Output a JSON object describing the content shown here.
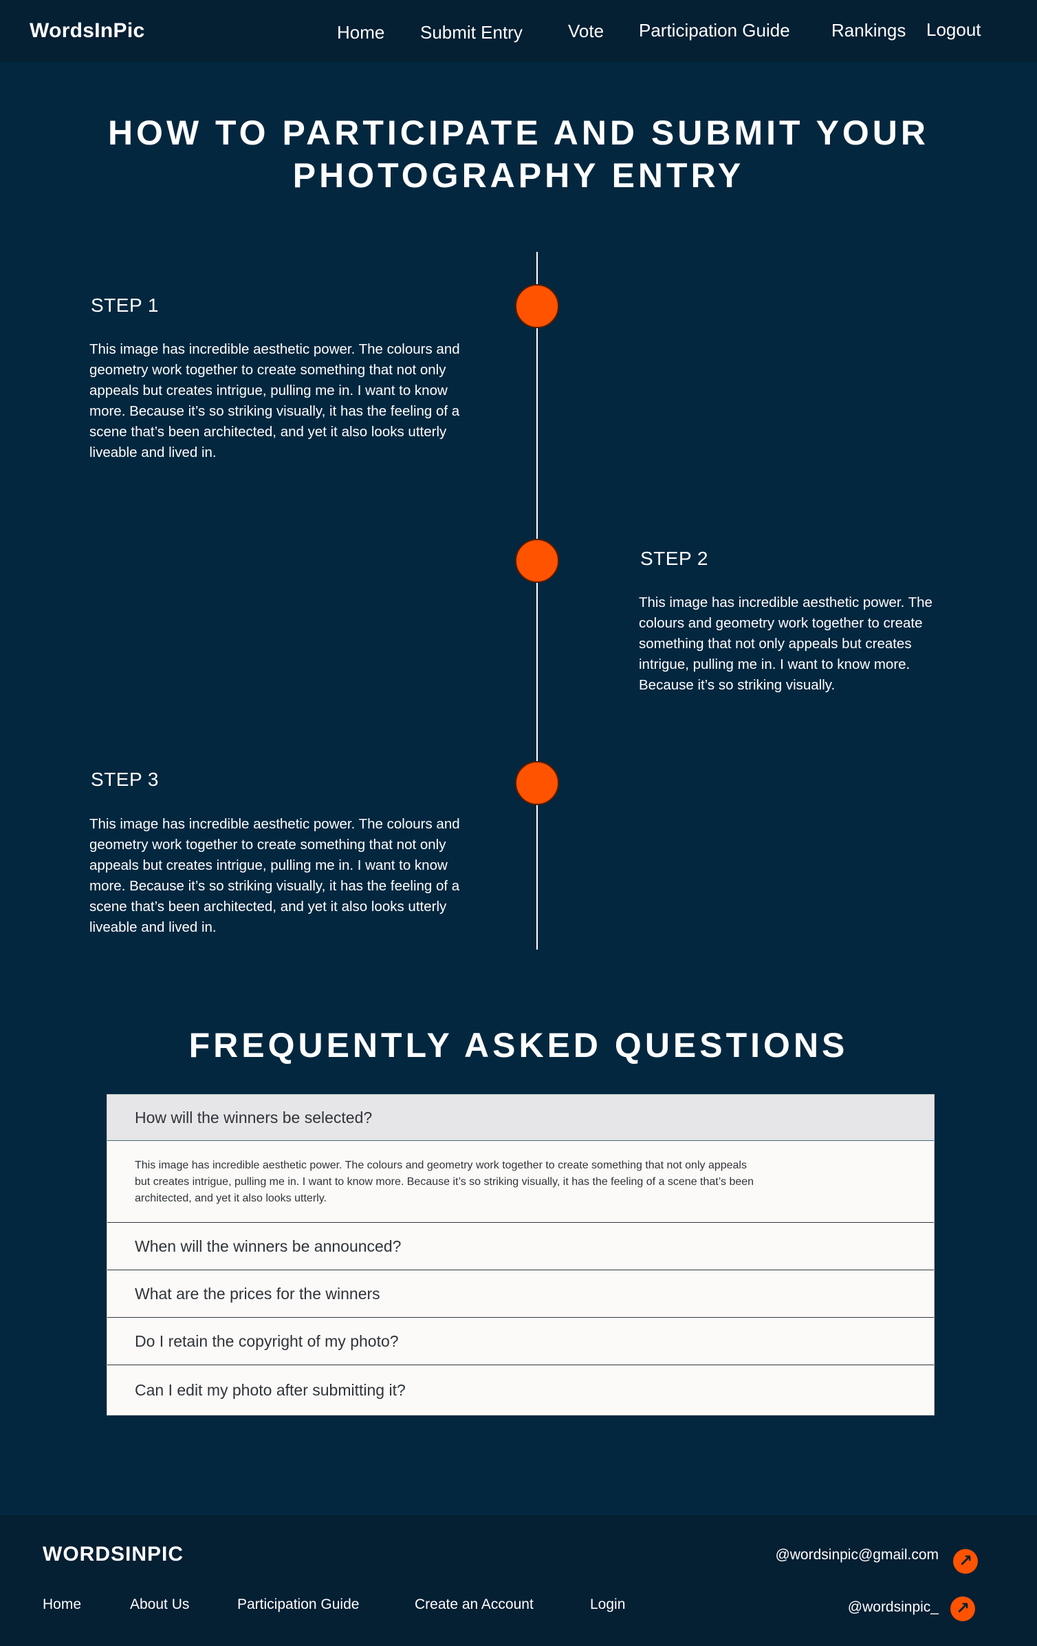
{
  "nav": {
    "brand": "WordsInPic",
    "links": [
      "Home",
      "Submit Entry",
      "Vote",
      "Participation Guide",
      "Rankings",
      "Logout"
    ]
  },
  "hero": {
    "title_line1": "HOW TO PARTICIPATE AND SUBMIT YOUR",
    "title_line2": "PHOTOGRAPHY ENTRY"
  },
  "steps": [
    {
      "heading": "STEP 1",
      "lines": [
        "This image has incredible aesthetic power. The colours and",
        "geometry work together to create something that not only",
        "appeals but creates intrigue, pulling me in. I want to know",
        "more. Because it’s so striking visually, it has the feeling of a",
        "scene that’s been architected, and yet it also looks utterly",
        "liveable and lived in."
      ]
    },
    {
      "heading": "STEP 2",
      "lines": [
        "This image has incredible aesthetic power. The",
        "colours and geometry work together to create",
        "something that not only appeals but creates",
        "intrigue, pulling me in. I want to know more.",
        "Because it’s so striking visually."
      ]
    },
    {
      "heading": "STEP 3",
      "lines": [
        "This image has incredible aesthetic power. The colours and",
        "geometry work together to create something that not only",
        "appeals but creates intrigue, pulling me in. I want to know",
        "more. Because it’s so striking visually, it has the feeling of a",
        "scene that’s been architected, and yet it also looks utterly",
        "liveable and lived in."
      ]
    }
  ],
  "faq": {
    "title": "FREQUENTLY ASKED QUESTIONS",
    "items": [
      {
        "question": "How will the winners be selected?",
        "answer_lines": [
          "This image has incredible aesthetic power. The colours and geometry work together to create something that not only appeals",
          "but creates intrigue, pulling me in. I want to know more. Because it’s so striking visually, it has the feeling of a scene that’s been",
          "architected, and yet it also looks utterly."
        ]
      },
      {
        "question": "When will the winners be announced?"
      },
      {
        "question": "What are the prices for the winners"
      },
      {
        "question": "Do I retain the copyright of my photo?"
      },
      {
        "question": "Can I edit my photo after submitting it?"
      }
    ]
  },
  "footer": {
    "brand": "WORDSINPIC",
    "links": [
      "Home",
      "About Us",
      "Participation Guide",
      "Create an Account",
      "Login"
    ],
    "email": "@wordsinpic@gmail.com",
    "handle": "@wordsinpic_"
  },
  "colors": {
    "background": "#03273f",
    "nav_footer": "#051f33",
    "accent": "#ff5300"
  },
  "icons": {
    "external": "arrow-up-right-icon"
  }
}
